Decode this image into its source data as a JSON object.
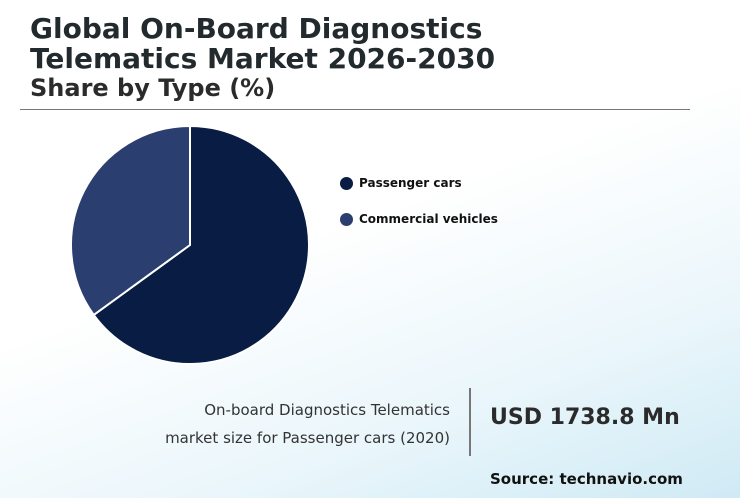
{
  "header": {
    "title_line1": "Global On-Board Diagnostics",
    "title_line2": "Telematics Market 2026-2030",
    "subtitle": "Share by Type (%)"
  },
  "chart_data": {
    "type": "pie",
    "title": "Global On-Board Diagnostics Telematics Market 2026-2030",
    "subtitle": "Share by Type (%)",
    "categories": [
      "Passenger cars",
      "Commercial vehicles"
    ],
    "values": [
      65,
      35
    ],
    "colors": [
      "#081c44",
      "#2a3f70"
    ],
    "legend_position": "right"
  },
  "highlight": {
    "caption_line1": "On-board Diagnostics Telematics",
    "caption_line2": "market size for Passenger cars (2020)",
    "value": "USD 1738.8 Mn"
  },
  "source": "Source: technavio.com"
}
